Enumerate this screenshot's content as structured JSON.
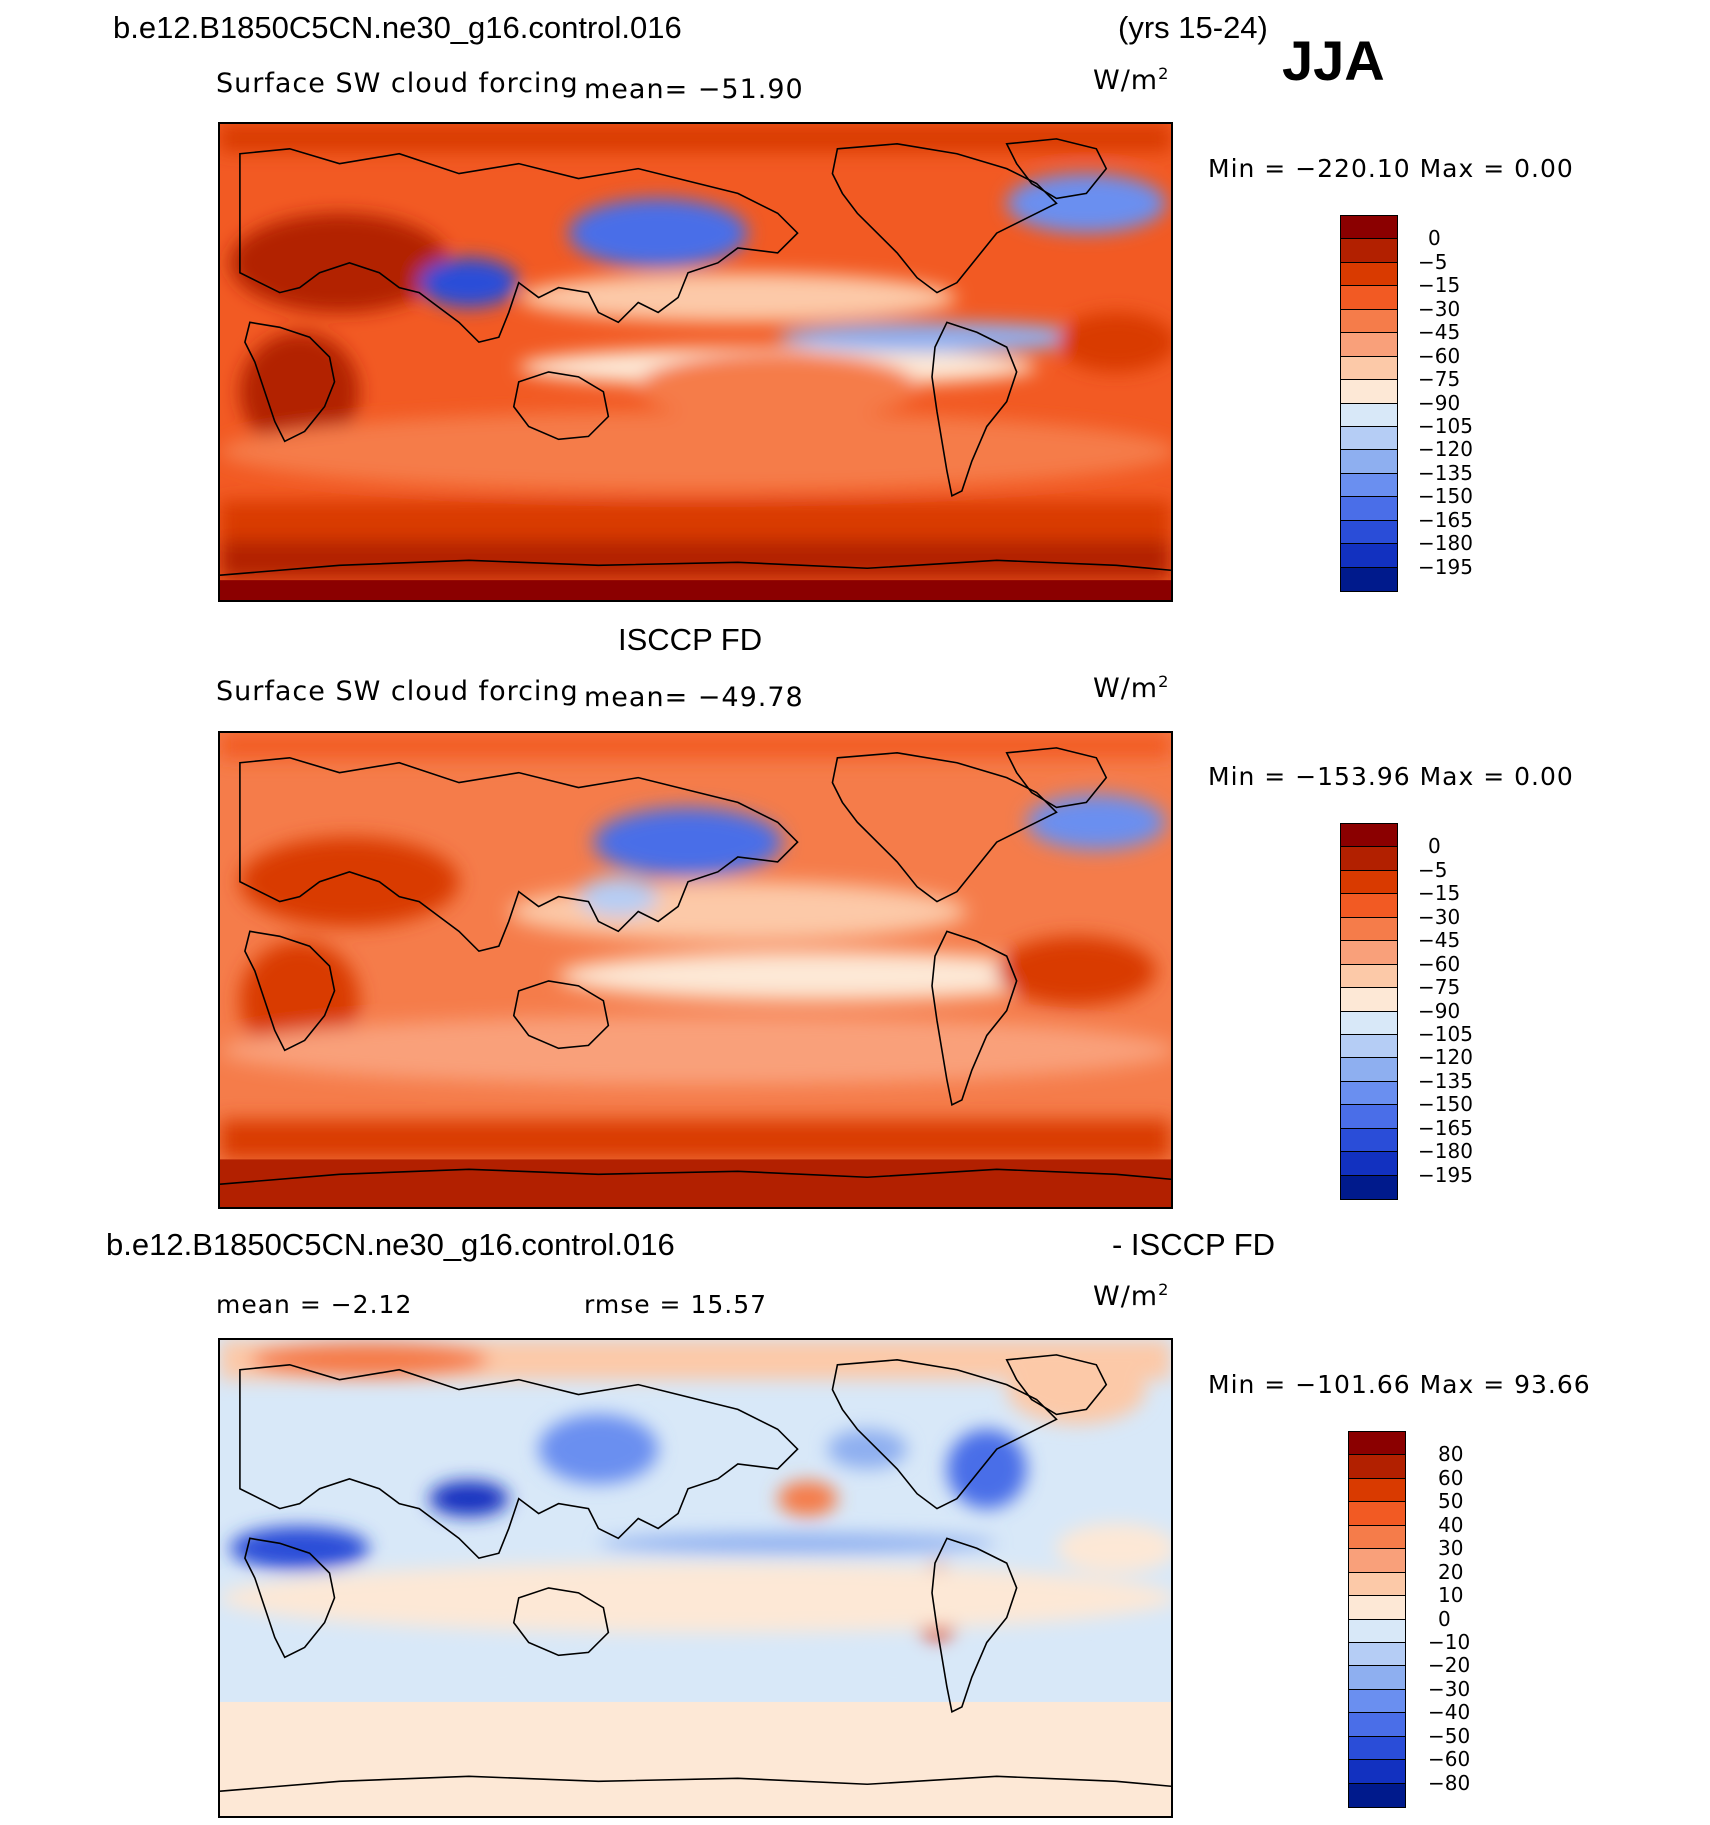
{
  "header": {
    "case_name": "b.e12.B1850C5CN.ne30_g16.control.016",
    "years": "(yrs 15-24)",
    "season": "JJA"
  },
  "panels": [
    {
      "title": "",
      "variable": "Surface SW cloud forcing",
      "mean_label": "mean= −51.90",
      "units_label": "W/m",
      "units_sup": "2",
      "minmax_label": "Min = −220.10 Max =    0.00",
      "colorbar": {
        "labels": [
          "0",
          "−5",
          "−15",
          "−30",
          "−45",
          "−60",
          "−75",
          "−90",
          "−105",
          "−120",
          "−135",
          "−150",
          "−165",
          "−180",
          "−195"
        ],
        "colors": [
          "#8b0000",
          "#b22000",
          "#d93a00",
          "#f25a23",
          "#f57c4a",
          "#f9a07a",
          "#fcc9a8",
          "#fde8d6",
          "#d8e8f8",
          "#b5cdf5",
          "#8eaff0",
          "#6a8ff0",
          "#4a6ee8",
          "#2a4dd8",
          "#1231c0",
          "#001a8c"
        ]
      }
    },
    {
      "title": "ISCCP FD",
      "variable": "Surface SW cloud forcing",
      "mean_label": "mean= −49.78",
      "units_label": "W/m",
      "units_sup": "2",
      "minmax_label": "Min = −153.96 Max =    0.00",
      "colorbar": {
        "labels": [
          "0",
          "−5",
          "−15",
          "−30",
          "−45",
          "−60",
          "−75",
          "−90",
          "−105",
          "−120",
          "−135",
          "−150",
          "−165",
          "−180",
          "−195"
        ],
        "colors": [
          "#8b0000",
          "#b22000",
          "#d93a00",
          "#f25a23",
          "#f57c4a",
          "#f9a07a",
          "#fcc9a8",
          "#fde8d6",
          "#d8e8f8",
          "#b5cdf5",
          "#8eaff0",
          "#6a8ff0",
          "#4a6ee8",
          "#2a4dd8",
          "#1231c0",
          "#001a8c"
        ]
      }
    },
    {
      "title_left": "b.e12.B1850C5CN.ne30_g16.control.016",
      "title_right": "- ISCCP FD",
      "mean_label": "mean =   −2.12",
      "rmse_label": "rmse =   15.57",
      "units_label": "W/m",
      "units_sup": "2",
      "minmax_label": "Min = −101.66 Max =   93.66",
      "colorbar": {
        "labels": [
          "80",
          "60",
          "50",
          "40",
          "30",
          "20",
          "10",
          "0",
          "−10",
          "−20",
          "−30",
          "−40",
          "−50",
          "−60",
          "−80"
        ],
        "colors": [
          "#8b0000",
          "#b22000",
          "#d93a00",
          "#f25a23",
          "#f57c4a",
          "#f9a07a",
          "#fcc9a8",
          "#fde8d6",
          "#d8e8f8",
          "#b5cdf5",
          "#8eaff0",
          "#6a8ff0",
          "#4a6ee8",
          "#2a4dd8",
          "#1231c0",
          "#001a8c"
        ]
      }
    }
  ],
  "colors": {
    "deep_red": "#8b0000",
    "mid_red": "#f25a23",
    "pale_orange": "#fcc9a8",
    "pale_blue": "#d8e8f8",
    "mid_blue": "#4a6ee8",
    "deep_blue": "#001a8c",
    "coastline": "#000000"
  }
}
